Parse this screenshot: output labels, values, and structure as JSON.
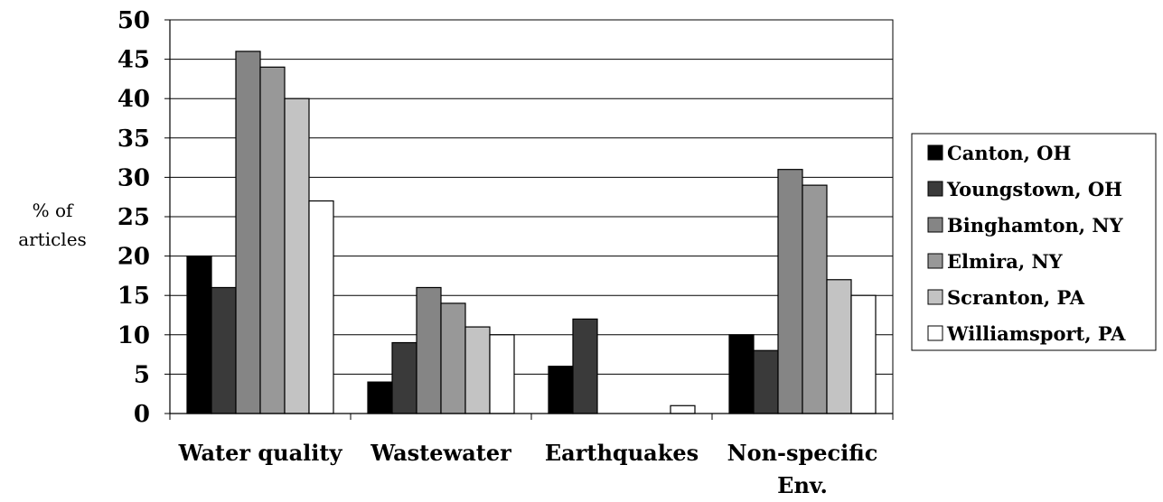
{
  "chart_data": {
    "type": "bar",
    "ylabel": [
      "% of",
      "articles"
    ],
    "xlabel": "",
    "ylim": [
      0,
      50
    ],
    "y_ticks": [
      0,
      5,
      10,
      15,
      20,
      25,
      30,
      35,
      40,
      45,
      50
    ],
    "grid": "horizontal",
    "legend_position": "right",
    "categories": [
      [
        "Water quality"
      ],
      [
        "Wastewater"
      ],
      [
        "Earthquakes"
      ],
      [
        "Non-specific",
        "Env."
      ]
    ],
    "series": [
      {
        "name": "Canton, OH",
        "color": "#000000",
        "values": [
          20,
          4,
          6,
          10
        ]
      },
      {
        "name": "Youngstown, OH",
        "color": "#3a3a3a",
        "values": [
          16,
          9,
          12,
          8
        ]
      },
      {
        "name": "Binghamton, NY",
        "color": "#858585",
        "values": [
          46,
          16,
          0,
          31
        ]
      },
      {
        "name": "Elmira, NY",
        "color": "#989898",
        "values": [
          44,
          14,
          0,
          29
        ]
      },
      {
        "name": "Scranton, PA",
        "color": "#c3c3c3",
        "values": [
          40,
          11,
          0,
          17
        ]
      },
      {
        "name": "Williamsport, PA",
        "color": "#ffffff",
        "values": [
          27,
          10,
          1,
          15
        ]
      }
    ]
  }
}
